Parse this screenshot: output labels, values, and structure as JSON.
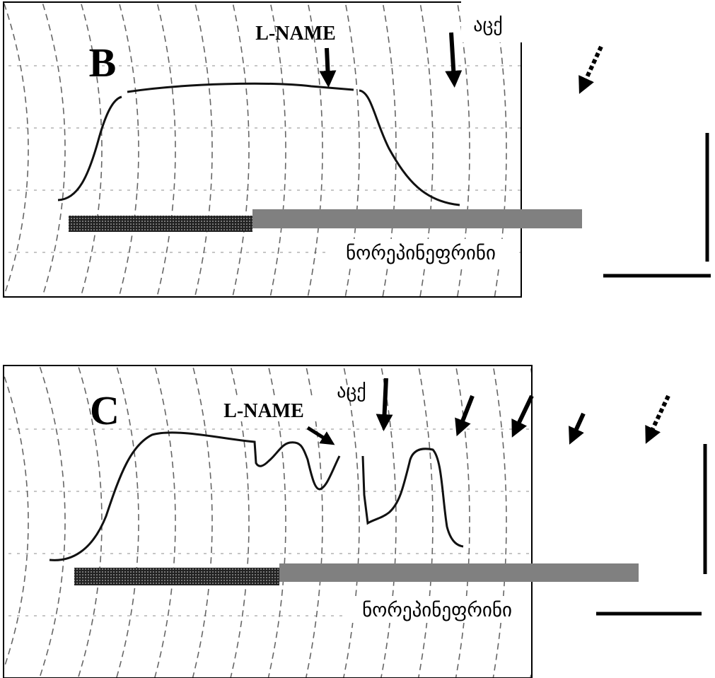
{
  "panels": [
    {
      "label": "B",
      "l_name": "L-NAME",
      "ach": "აცქ",
      "norepinephrine": "ნორეპინეფრინი"
    },
    {
      "label": "C",
      "l_name": "L-NAME",
      "ach": "აცქ",
      "norepinephrine": "ნორეპინეფრინი"
    }
  ]
}
